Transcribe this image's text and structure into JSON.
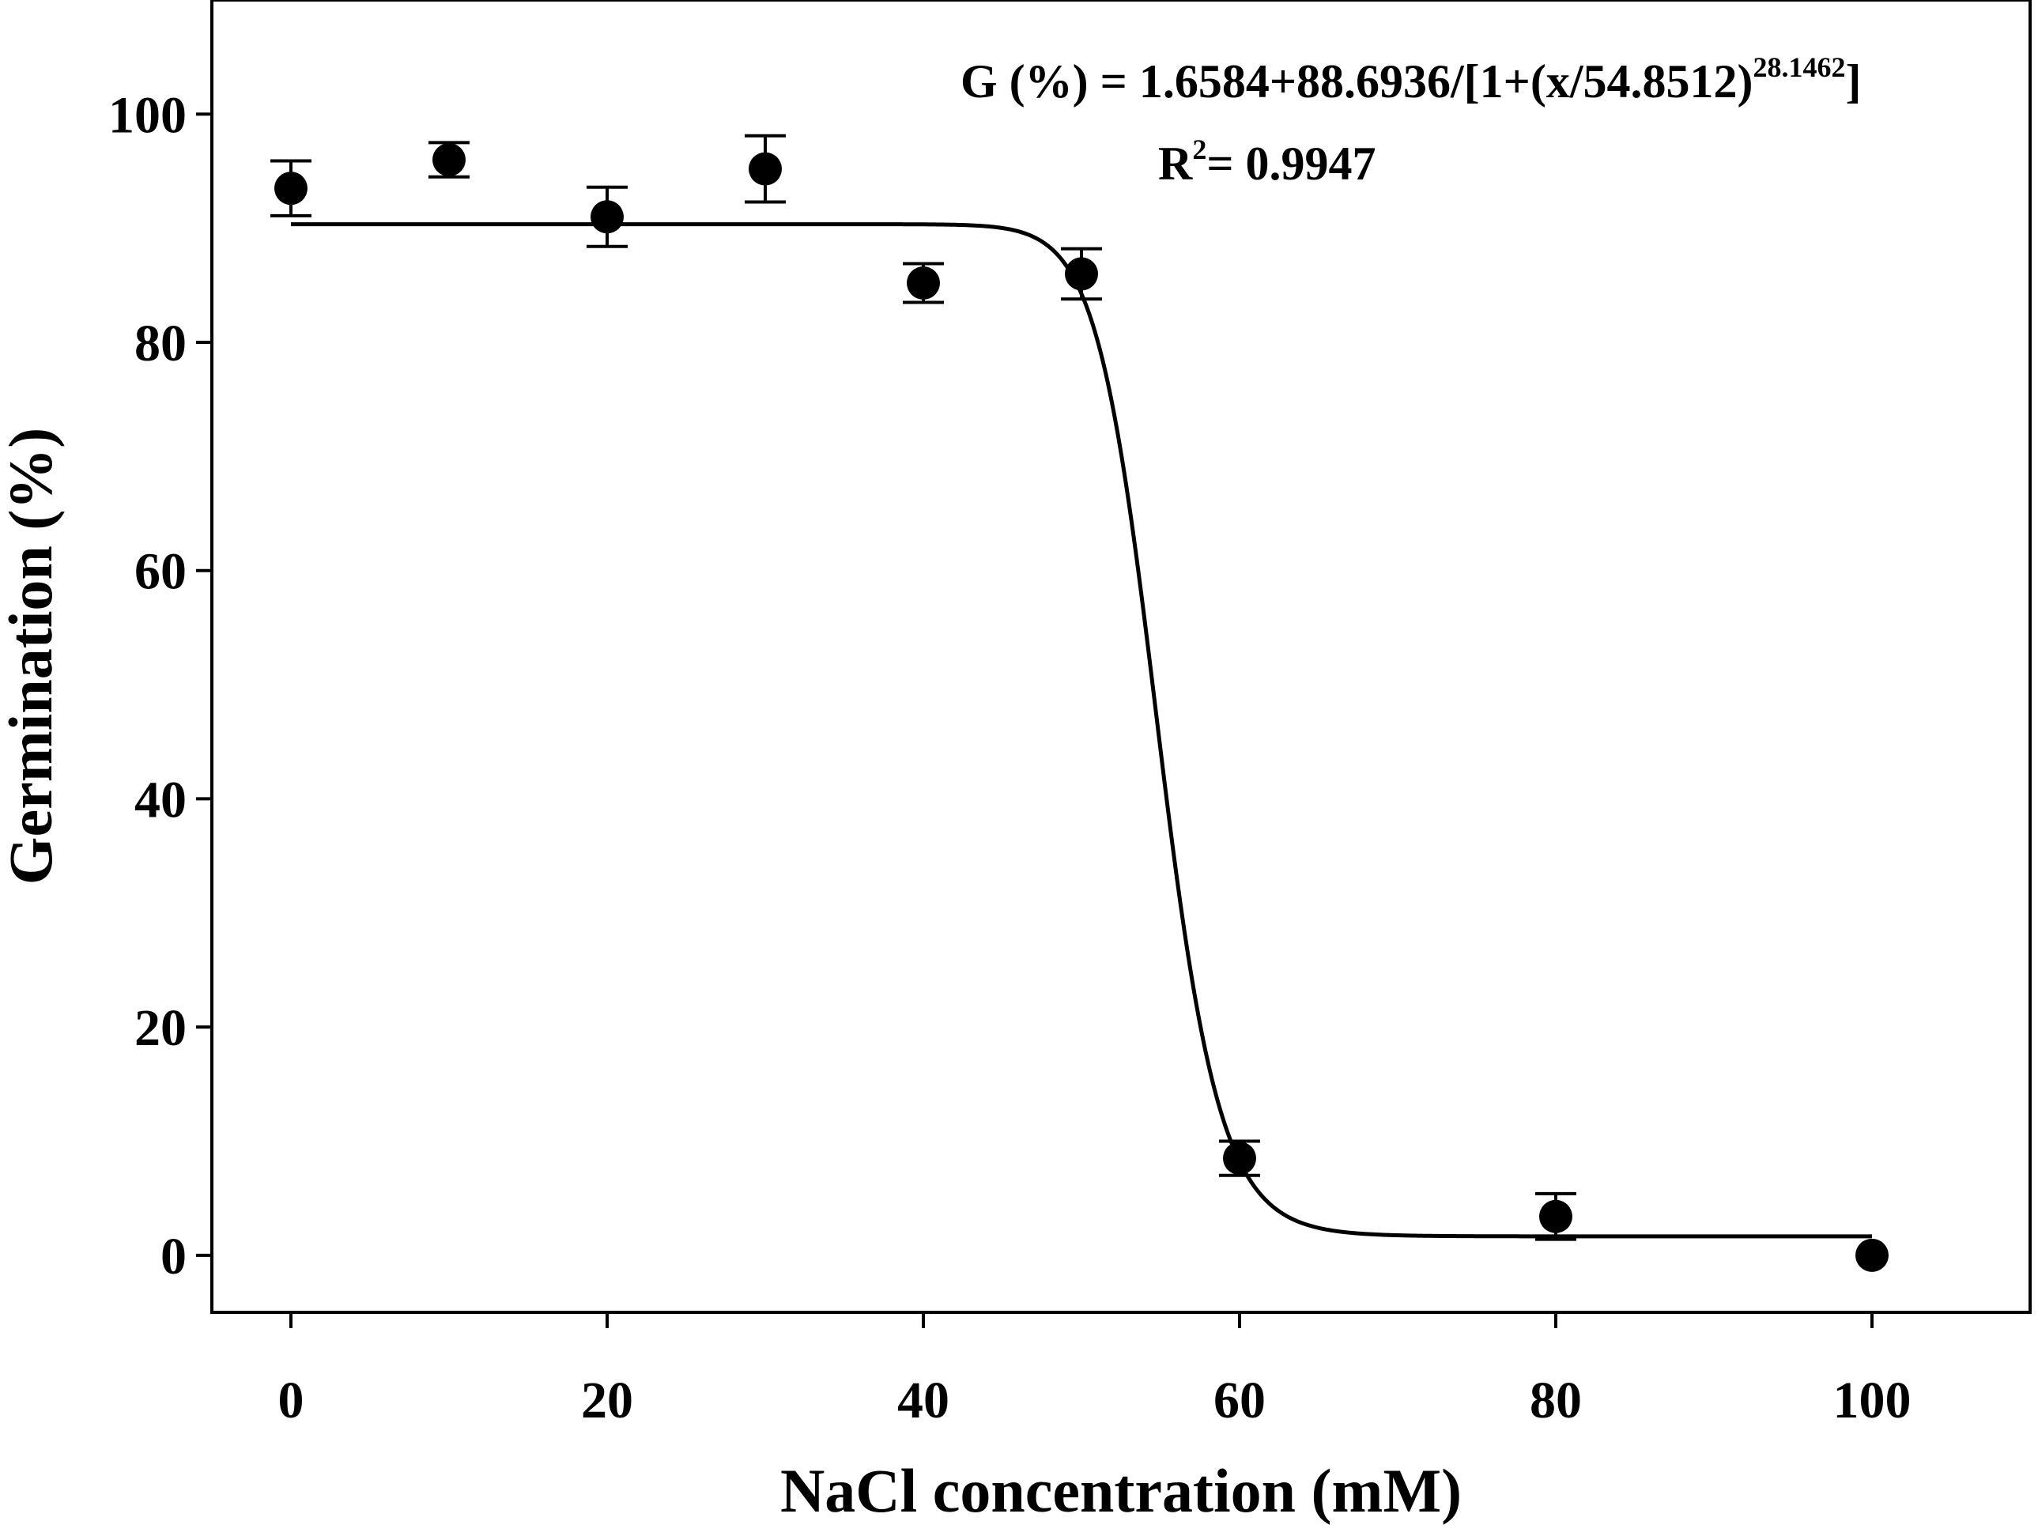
{
  "chart_data": {
    "type": "scatter",
    "xlabel": "NaCl concentration (mM)",
    "ylabel": "Germination (%)",
    "xlim": [
      -5,
      110
    ],
    "ylim": [
      -5,
      110
    ],
    "xticks": [
      0,
      20,
      40,
      60,
      80,
      100
    ],
    "yticks": [
      0,
      20,
      40,
      60,
      80,
      100
    ],
    "grid": false,
    "series": [
      {
        "name": "Germination",
        "x": [
          0,
          10,
          20,
          30,
          40,
          50,
          60,
          80,
          100
        ],
        "y": [
          93.5,
          96.0,
          91.0,
          95.2,
          85.2,
          86.0,
          8.5,
          3.4,
          0.0
        ],
        "yerr": [
          2.4,
          1.5,
          2.6,
          2.9,
          1.7,
          2.2,
          1.5,
          2.0,
          0.0
        ]
      }
    ],
    "fit": {
      "model": "sigmoid",
      "y0": 1.6584,
      "a": 88.6936,
      "x0": 54.8512,
      "b": 28.1462,
      "x_range": [
        0,
        100
      ],
      "equation_main": "G (%) = 1.6584+88.6936/[1+(x/54.8512)",
      "equation_exponent": "28.1462",
      "equation_close": "]",
      "r2_label": "R",
      "r2_exponent": "2",
      "r2_value": "= 0.9947"
    }
  }
}
